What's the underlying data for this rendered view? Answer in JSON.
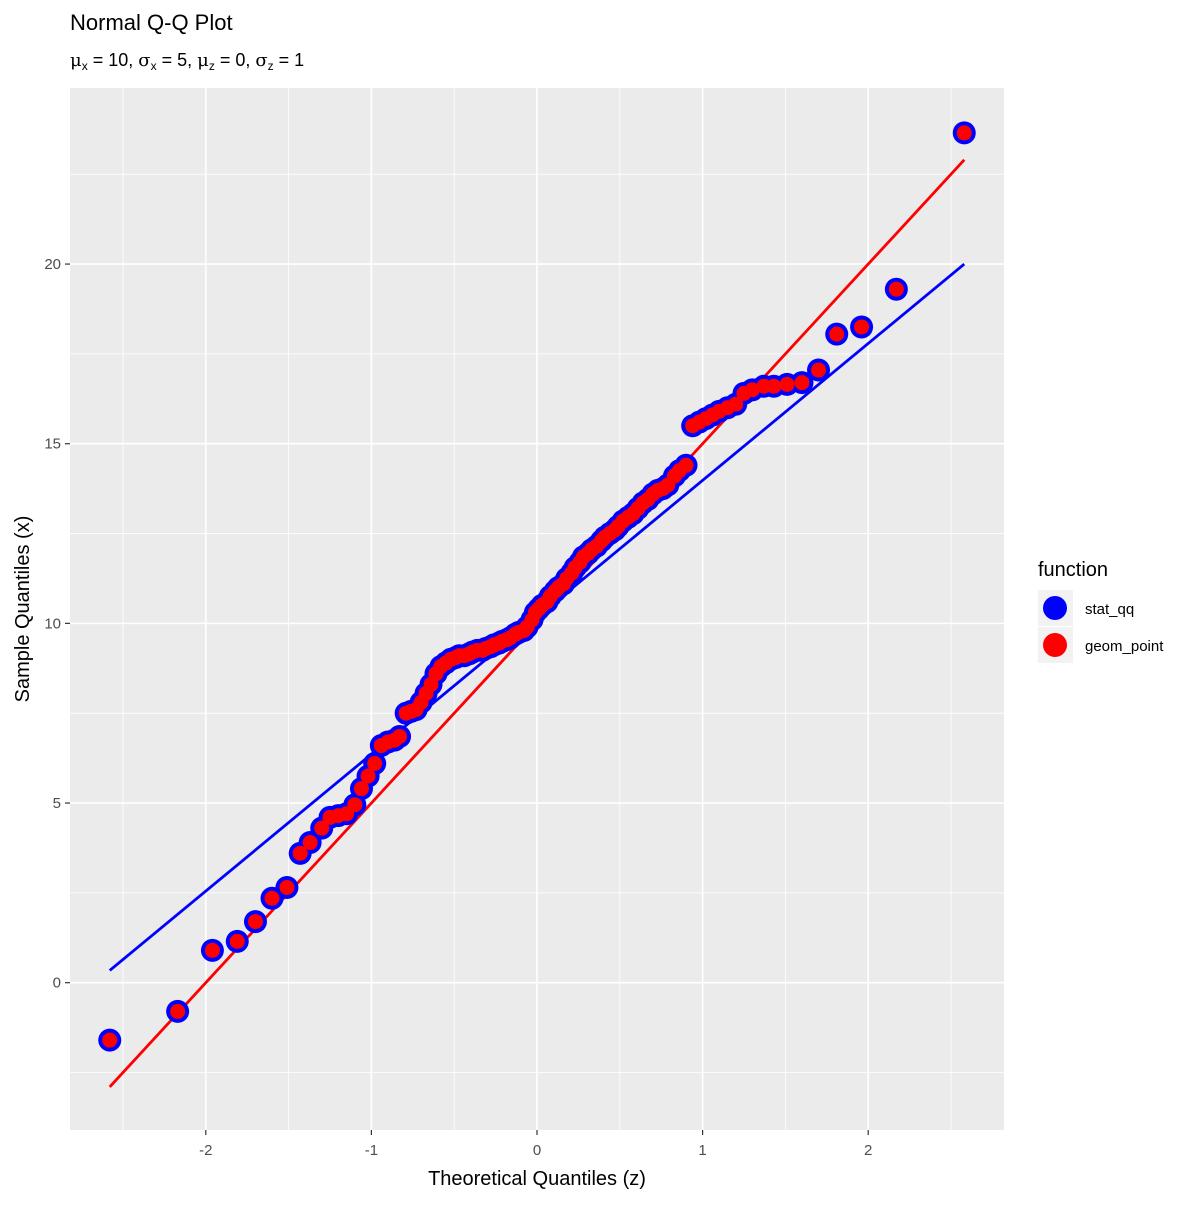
{
  "chart_data": {
    "type": "scatter",
    "title": "Normal Q-Q Plot",
    "subtitle": {
      "mu_x": "10",
      "sigma_x": "5",
      "mu_z": "0",
      "sigma_z": "1"
    },
    "xlabel": "Theoretical Quantiles (z)",
    "ylabel": "Sample Quantiles (x)",
    "xlim": [
      -2.82,
      2.82
    ],
    "ylim": [
      -4.1,
      24.9
    ],
    "xticks": [
      -2,
      -1,
      0,
      1,
      2
    ],
    "yticks": [
      0,
      5,
      10,
      15,
      20
    ],
    "xtick_labels": [
      "-2",
      "-1",
      "0",
      "1",
      "2"
    ],
    "ytick_labels": [
      "0",
      "5",
      "10",
      "15",
      "20"
    ],
    "grid": true,
    "legend": {
      "title": "function",
      "position": "right",
      "entries": [
        {
          "label": "stat_qq",
          "color": "#0000FF"
        },
        {
          "label": "geom_point",
          "color": "#FF0000"
        }
      ]
    },
    "points": {
      "theoretical": [
        -2.58,
        -2.17,
        -1.96,
        -1.81,
        -1.7,
        -1.6,
        -1.51,
        -1.43,
        -1.37,
        -1.3,
        -1.25,
        -1.2,
        -1.15,
        -1.1,
        -1.06,
        -1.02,
        -0.98,
        -0.94,
        -0.9,
        -0.86,
        -0.83,
        -0.79,
        -0.76,
        -0.73,
        -0.7,
        -0.67,
        -0.64,
        -0.61,
        -0.58,
        -0.55,
        -0.52,
        -0.49,
        -0.47,
        -0.44,
        -0.41,
        -0.39,
        -0.36,
        -0.33,
        -0.31,
        -0.28,
        -0.26,
        -0.23,
        -0.21,
        -0.18,
        -0.16,
        -0.13,
        -0.11,
        -0.08,
        -0.06,
        -0.03,
        -0.01,
        0.01,
        0.03,
        0.06,
        0.08,
        0.11,
        0.13,
        0.16,
        0.18,
        0.21,
        0.23,
        0.26,
        0.28,
        0.31,
        0.33,
        0.36,
        0.39,
        0.41,
        0.44,
        0.47,
        0.49,
        0.52,
        0.55,
        0.58,
        0.61,
        0.64,
        0.67,
        0.7,
        0.73,
        0.76,
        0.79,
        0.83,
        0.86,
        0.9,
        0.94,
        0.98,
        1.02,
        1.06,
        1.1,
        1.15,
        1.2,
        1.25,
        1.3,
        1.37,
        1.43,
        1.51,
        1.6,
        1.7,
        1.81,
        1.96,
        2.17,
        2.58
      ],
      "sample": [
        -1.6,
        -0.8,
        0.9,
        1.15,
        1.7,
        2.35,
        2.65,
        3.6,
        3.9,
        4.3,
        4.6,
        4.65,
        4.7,
        4.95,
        5.4,
        5.75,
        6.1,
        6.6,
        6.7,
        6.75,
        6.85,
        7.5,
        7.55,
        7.6,
        7.8,
        8.05,
        8.3,
        8.6,
        8.8,
        8.9,
        9.0,
        9.05,
        9.1,
        9.1,
        9.15,
        9.2,
        9.25,
        9.25,
        9.3,
        9.35,
        9.4,
        9.45,
        9.5,
        9.55,
        9.6,
        9.7,
        9.75,
        9.8,
        9.9,
        10.1,
        10.3,
        10.4,
        10.5,
        10.6,
        10.75,
        10.9,
        11.0,
        11.1,
        11.25,
        11.4,
        11.55,
        11.7,
        11.85,
        11.95,
        12.05,
        12.15,
        12.3,
        12.4,
        12.5,
        12.6,
        12.7,
        12.85,
        12.95,
        13.05,
        13.2,
        13.35,
        13.45,
        13.6,
        13.7,
        13.75,
        13.85,
        14.1,
        14.25,
        14.4,
        15.5,
        15.6,
        15.7,
        15.8,
        15.9,
        16.0,
        16.1,
        16.4,
        16.5,
        16.6,
        16.6,
        16.65,
        16.7,
        17.05,
        18.05,
        18.25,
        19.3,
        23.65
      ]
    },
    "lines": [
      {
        "name": "stat_qq",
        "color": "#0000FF",
        "x": [
          -2.58,
          2.58
        ],
        "y": [
          0.34,
          20.0
        ]
      },
      {
        "name": "geom_point",
        "color": "#FF0000",
        "x": [
          -2.58,
          2.58
        ],
        "y": [
          -2.9,
          22.9
        ]
      }
    ]
  }
}
